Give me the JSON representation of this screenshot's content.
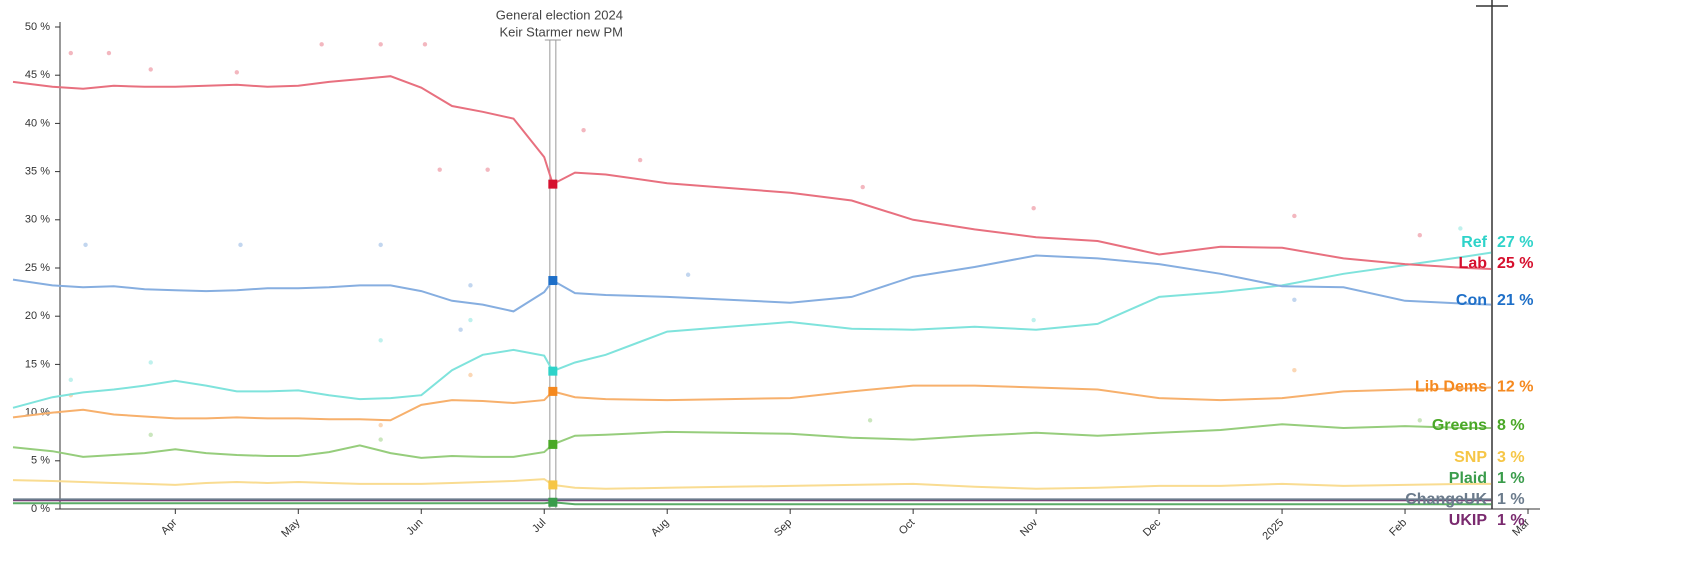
{
  "chart_data": {
    "type": "line",
    "xlim": [
      2.68,
      15.1
    ],
    "xticks": [
      {
        "value": 4,
        "label": "Apr"
      },
      {
        "value": 5,
        "label": "May"
      },
      {
        "value": 6,
        "label": "Jun"
      },
      {
        "value": 7,
        "label": "Jul"
      },
      {
        "value": 8,
        "label": "Aug"
      },
      {
        "value": 9,
        "label": "Sep"
      },
      {
        "value": 10,
        "label": "Oct"
      },
      {
        "value": 11,
        "label": "Nov"
      },
      {
        "value": 12,
        "label": "Dec"
      },
      {
        "value": 13,
        "label": "2025"
      },
      {
        "value": 14,
        "label": "Feb"
      },
      {
        "value": 15,
        "label": "Mar"
      }
    ],
    "ylim": [
      0,
      50
    ],
    "yticks": [
      {
        "value": 0,
        "label": "0 %"
      },
      {
        "value": 5,
        "label": "5 %"
      },
      {
        "value": 10,
        "label": "10 %"
      },
      {
        "value": 15,
        "label": "15 %"
      },
      {
        "value": 20,
        "label": "20 %"
      },
      {
        "value": 25,
        "label": "25 %"
      },
      {
        "value": 30,
        "label": "30 %"
      },
      {
        "value": 35,
        "label": "35 %"
      },
      {
        "value": 40,
        "label": "40 %"
      },
      {
        "value": 45,
        "label": "45 %"
      },
      {
        "value": 50,
        "label": "50 %"
      }
    ],
    "annotation": {
      "x": 7.07,
      "lines": [
        "General election 2024",
        "Keir Starmer new PM"
      ]
    },
    "x": [
      2.68,
      3.0,
      3.25,
      3.5,
      3.75,
      4.0,
      4.25,
      4.5,
      4.75,
      5.0,
      5.25,
      5.5,
      5.75,
      6.0,
      6.25,
      6.5,
      6.75,
      7.0,
      7.07,
      7.25,
      7.5,
      8.0,
      8.5,
      9.0,
      9.5,
      10.0,
      10.5,
      11.0,
      11.5,
      12.0,
      12.5,
      13.0,
      13.5,
      14.0,
      14.5,
      14.7
    ],
    "series": [
      {
        "name": "Lab",
        "color": "#d6102e",
        "line_color": "#e8707f",
        "marker": "square",
        "values": [
          44.3,
          43.8,
          43.6,
          43.9,
          43.8,
          43.8,
          43.9,
          44.0,
          43.8,
          43.9,
          44.3,
          44.6,
          44.9,
          43.7,
          41.8,
          41.2,
          40.5,
          36.5,
          33.7,
          34.9,
          34.7,
          33.8,
          33.3,
          32.8,
          32.0,
          30.0,
          29.0,
          28.2,
          27.8,
          26.4,
          27.2,
          27.1,
          26.0,
          25.4,
          25.0,
          24.9
        ],
        "last": 25,
        "last_label": "25 %",
        "polls": {
          "x": [
            3.15,
            3.46,
            3.8,
            4.5,
            5.19,
            5.67,
            6.03,
            6.15,
            6.54,
            7.32,
            7.78,
            9.59,
            10.98,
            13.1,
            14.12
          ],
          "values": [
            47.3,
            47.3,
            45.6,
            45.3,
            48.2,
            48.2,
            48.2,
            35.2,
            35.2,
            39.3,
            36.2,
            33.4,
            31.2,
            30.4,
            28.4
          ]
        }
      },
      {
        "name": "Con",
        "color": "#1e6fc8",
        "line_color": "#86aee0",
        "marker": "square",
        "values": [
          23.8,
          23.2,
          23.0,
          23.1,
          22.8,
          22.7,
          22.6,
          22.7,
          22.9,
          22.9,
          23.0,
          23.2,
          23.2,
          22.6,
          21.6,
          21.2,
          20.5,
          22.5,
          23.7,
          22.4,
          22.2,
          22.0,
          21.7,
          21.4,
          22.0,
          24.1,
          25.1,
          26.3,
          26.0,
          25.4,
          24.4,
          23.1,
          23.0,
          21.6,
          21.3,
          21.2
        ],
        "last": 21,
        "last_label": "21 %",
        "polls": {
          "x": [
            3.27,
            4.53,
            5.67,
            6.4,
            6.32,
            8.17,
            13.1
          ],
          "values": [
            27.4,
            27.4,
            27.4,
            23.2,
            18.6,
            24.3,
            21.7
          ]
        }
      },
      {
        "name": "Ref",
        "color": "#2ed3c9",
        "line_color": "#7fe3dc",
        "marker": "square",
        "values": [
          10.5,
          11.6,
          12.1,
          12.4,
          12.8,
          13.3,
          12.8,
          12.2,
          12.2,
          12.3,
          11.8,
          11.4,
          11.5,
          11.8,
          14.4,
          16.0,
          16.5,
          15.9,
          14.3,
          15.2,
          16.0,
          18.4,
          18.9,
          19.4,
          18.7,
          18.6,
          18.9,
          18.6,
          19.2,
          22.0,
          22.5,
          23.2,
          24.4,
          25.3,
          26.2,
          26.6
        ],
        "last": 27,
        "last_label": "27 %",
        "polls": {
          "x": [
            3.15,
            3.8,
            5.67,
            6.4,
            10.98,
            14.45
          ],
          "values": [
            13.4,
            15.2,
            17.5,
            19.6,
            19.6,
            29.1
          ]
        }
      },
      {
        "name": "Lib Dems",
        "color": "#f5891f",
        "line_color": "#f7b06c",
        "marker": "square",
        "values": [
          9.5,
          10.0,
          10.3,
          9.8,
          9.6,
          9.4,
          9.4,
          9.5,
          9.4,
          9.4,
          9.3,
          9.3,
          9.2,
          10.8,
          11.3,
          11.2,
          11.0,
          11.3,
          12.2,
          11.6,
          11.4,
          11.3,
          11.4,
          11.5,
          12.2,
          12.8,
          12.8,
          12.6,
          12.4,
          11.5,
          11.3,
          11.5,
          12.2,
          12.4,
          12.5,
          12.6
        ],
        "last": 12,
        "last_label": "12 %",
        "polls": {
          "x": [
            3.15,
            5.67,
            6.4,
            13.1
          ],
          "values": [
            11.8,
            8.7,
            13.9,
            14.4
          ]
        }
      },
      {
        "name": "Greens",
        "color": "#4aa827",
        "line_color": "#96cd7c",
        "marker": "square",
        "values": [
          6.4,
          6.0,
          5.4,
          5.6,
          5.8,
          6.2,
          5.8,
          5.6,
          5.5,
          5.5,
          5.9,
          6.6,
          5.8,
          5.3,
          5.5,
          5.4,
          5.4,
          5.9,
          6.7,
          7.6,
          7.7,
          8.0,
          7.9,
          7.8,
          7.4,
          7.2,
          7.6,
          7.9,
          7.6,
          7.9,
          8.2,
          8.8,
          8.4,
          8.6,
          8.4,
          8.4
        ],
        "last": 8,
        "last_label": "8 %",
        "polls": {
          "x": [
            3.8,
            5.67,
            9.65,
            14.12
          ],
          "values": [
            7.7,
            7.2,
            9.2,
            9.2
          ]
        }
      },
      {
        "name": "SNP",
        "color": "#f6c646",
        "line_color": "#f9dc91",
        "marker": "square",
        "values": [
          3.0,
          2.9,
          2.8,
          2.7,
          2.6,
          2.5,
          2.7,
          2.8,
          2.7,
          2.8,
          2.7,
          2.6,
          2.6,
          2.6,
          2.7,
          2.8,
          2.9,
          3.1,
          2.5,
          2.2,
          2.1,
          2.2,
          2.3,
          2.4,
          2.5,
          2.6,
          2.3,
          2.1,
          2.2,
          2.4,
          2.4,
          2.6,
          2.4,
          2.5,
          2.6,
          2.6
        ],
        "last": 3,
        "last_label": "3 %"
      },
      {
        "name": "Plaid",
        "color": "#3a9c4b",
        "line_color": "#5aab67",
        "marker": "square",
        "values": [
          0.6,
          0.6,
          0.6,
          0.6,
          0.6,
          0.6,
          0.6,
          0.6,
          0.6,
          0.6,
          0.6,
          0.6,
          0.6,
          0.6,
          0.6,
          0.6,
          0.6,
          0.6,
          0.7,
          0.5,
          0.5,
          0.5,
          0.5,
          0.5,
          0.5,
          0.5,
          0.5,
          0.5,
          0.5,
          0.5,
          0.5,
          0.5,
          0.5,
          0.5,
          0.5,
          0.5
        ],
        "last": 1,
        "last_label": "1 %"
      },
      {
        "name": "ChangeUK",
        "color": "#6b7b8c",
        "line_color": "#6b7b8c",
        "values": [
          1.0,
          1.0,
          1.0,
          1.0,
          1.0,
          1.0,
          1.0,
          1.0,
          1.0,
          1.0,
          1.0,
          1.0,
          1.0,
          1.0,
          1.0,
          1.0,
          1.0,
          1.0,
          1.0,
          1.0,
          1.0,
          1.0,
          1.0,
          1.0,
          1.0,
          1.0,
          1.0,
          1.0,
          1.0,
          1.0,
          1.0,
          1.0,
          1.0,
          1.0,
          1.0,
          1.0
        ],
        "last": 1,
        "last_label": "1 %"
      },
      {
        "name": "UKIP",
        "color": "#7a2a6f",
        "line_color": "#7a2a6f",
        "values": [
          0.9,
          0.9,
          0.9,
          0.9,
          0.9,
          0.9,
          0.9,
          0.9,
          0.9,
          0.9,
          0.9,
          0.9,
          0.9,
          0.9,
          0.9,
          0.9,
          0.9,
          0.9,
          0.9,
          0.9,
          0.9,
          0.9,
          0.9,
          0.9,
          0.9,
          0.9,
          0.9,
          0.9,
          0.9,
          0.9,
          0.9,
          0.9,
          0.9,
          0.9,
          0.9,
          0.9
        ],
        "last": 1,
        "last_label": "1 %"
      }
    ]
  }
}
